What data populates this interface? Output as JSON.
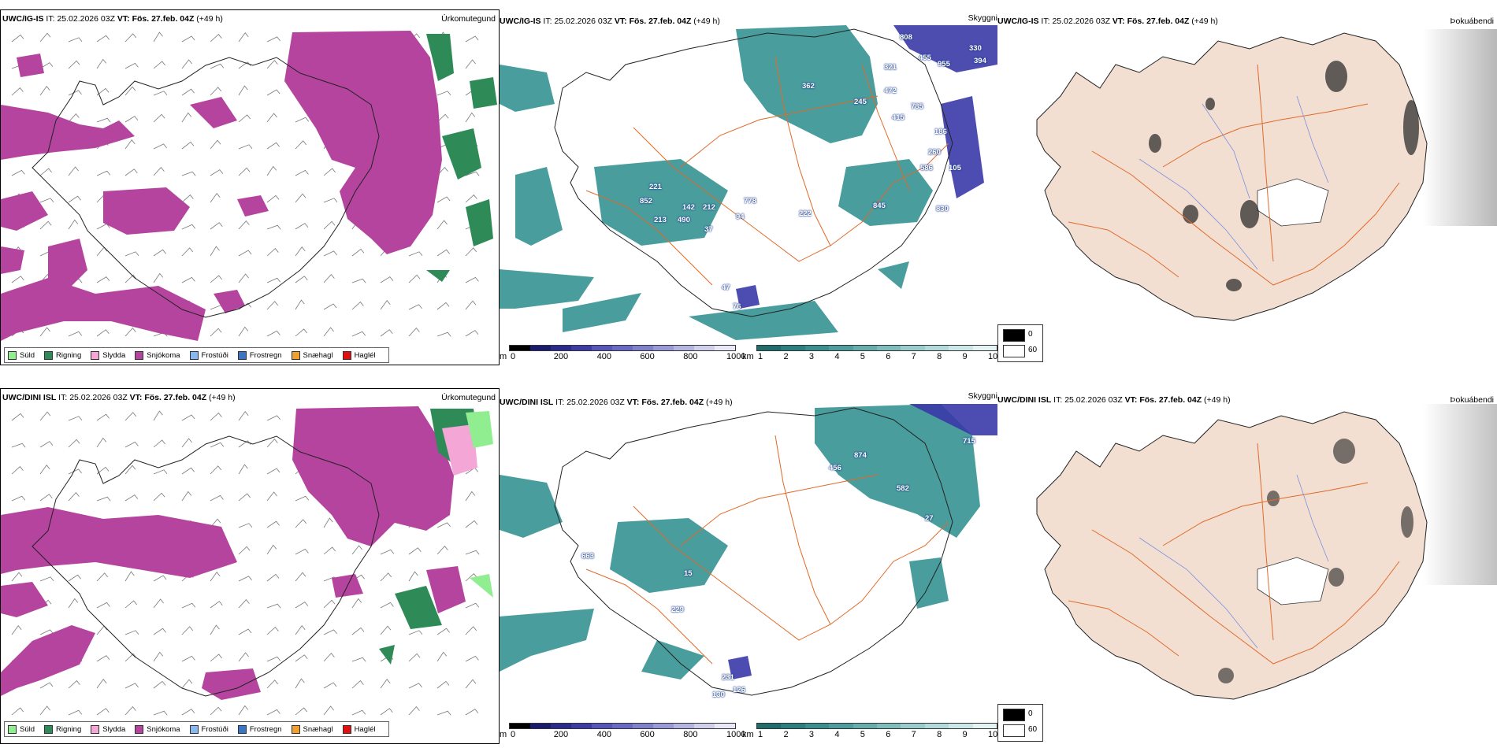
{
  "rows": [
    {
      "precip": {
        "model": "UWC/IG-IS",
        "it_label": "IT:",
        "it": "25.02.2026 03Z",
        "vt_label": "VT:",
        "vt": "Fös. 27.feb. 04Z",
        "lead": "(+49 h)",
        "title": "Úrkomutegund"
      },
      "cloud": {
        "model": "UWC/IG-IS",
        "it_label": "IT:",
        "it": "25.02.2026 03Z",
        "vt_label": "VT:",
        "vt": "Fös. 27.feb. 04Z",
        "lead": "(+49 h)",
        "title": "Skyggni",
        "labels": [
          "808",
          "330",
          "394",
          "955",
          "455",
          "321",
          "362",
          "245",
          "472",
          "415",
          "186",
          "260",
          "586",
          "105",
          "785",
          "852",
          "221",
          "142",
          "212",
          "213",
          "490",
          "37",
          "94",
          "778",
          "222",
          "845",
          "830",
          "76",
          "47"
        ]
      },
      "fog": {
        "model": "UWC/IG-IS",
        "it_label": "IT:",
        "it": "25.02.2026 03Z",
        "vt_label": "VT:",
        "vt": "Fös. 27.feb. 04Z",
        "lead": "(+49 h)",
        "title": "Þokuábendi"
      }
    },
    {
      "precip": {
        "model": "UWC/DINI ISL",
        "it_label": "IT:",
        "it": "25.02.2026 03Z",
        "vt_label": "VT:",
        "vt": "Fös. 27.feb. 04Z",
        "lead": "(+49 h)",
        "title": "Úrkomutegund"
      },
      "cloud": {
        "model": "UWC/DINI ISL",
        "it_label": "IT:",
        "it": "25.02.2026 03Z",
        "vt_label": "VT:",
        "vt": "Fös. 27.feb. 04Z",
        "lead": "(+49 h)",
        "title": "Skyggni",
        "labels": [
          "715",
          "874",
          "456",
          "582",
          "27",
          "663",
          "15",
          "229",
          "231",
          "126",
          "130"
        ]
      },
      "fog": {
        "model": "UWC/DINI ISL",
        "it_label": "IT:",
        "it": "25.02.2026 03Z",
        "vt_label": "VT:",
        "vt": "Fös. 27.feb. 04Z",
        "lead": "(+49 h)",
        "title": "Þokuábendi"
      }
    }
  ],
  "precip_legend": [
    {
      "label": "Súld",
      "color": "#90ee90"
    },
    {
      "label": "Rigning",
      "color": "#2e8b57"
    },
    {
      "label": "Slydda",
      "color": "#f4a6d7"
    },
    {
      "label": "Snjókoma",
      "color": "#b5449e"
    },
    {
      "label": "Frostúði",
      "color": "#87b9f0"
    },
    {
      "label": "Frostregn",
      "color": "#3a74c4"
    },
    {
      "label": "Snæhagl",
      "color": "#f0a030"
    },
    {
      "label": "Haglél",
      "color": "#e01010"
    }
  ],
  "ceiling_scale": {
    "unit": "m",
    "ticks": [
      "0",
      "200",
      "400",
      "600",
      "800",
      "1000"
    ],
    "colors": [
      "#000000",
      "#1a1a6e",
      "#2b2b8f",
      "#3c3ca8",
      "#5555bb",
      "#6a6ac6",
      "#8080cf",
      "#9a9ad8",
      "#b5b5e2",
      "#d0d0ec",
      "#e8e8f6"
    ]
  },
  "visibility_scale": {
    "unit": "km",
    "ticks": [
      "1",
      "2",
      "3",
      "4",
      "5",
      "6",
      "7",
      "8",
      "9",
      "10"
    ],
    "colors": [
      "#1f6e6e",
      "#2b7f7f",
      "#3a8f8f",
      "#4f9e9e",
      "#66adad",
      "#7fbdbd",
      "#99cccc",
      "#b3dada",
      "#cce7e7",
      "#e6f3f3"
    ]
  },
  "fog_legend": {
    "items": [
      {
        "label": "0",
        "color": "#000000"
      },
      {
        "label": "60",
        "color": "#ffffff"
      }
    ]
  },
  "colors": {
    "snow": "#b5449e",
    "rain": "#2e8b57",
    "land": "#f2dfd2",
    "roads": "#e06a2a",
    "teal": "#2a8c8c"
  }
}
